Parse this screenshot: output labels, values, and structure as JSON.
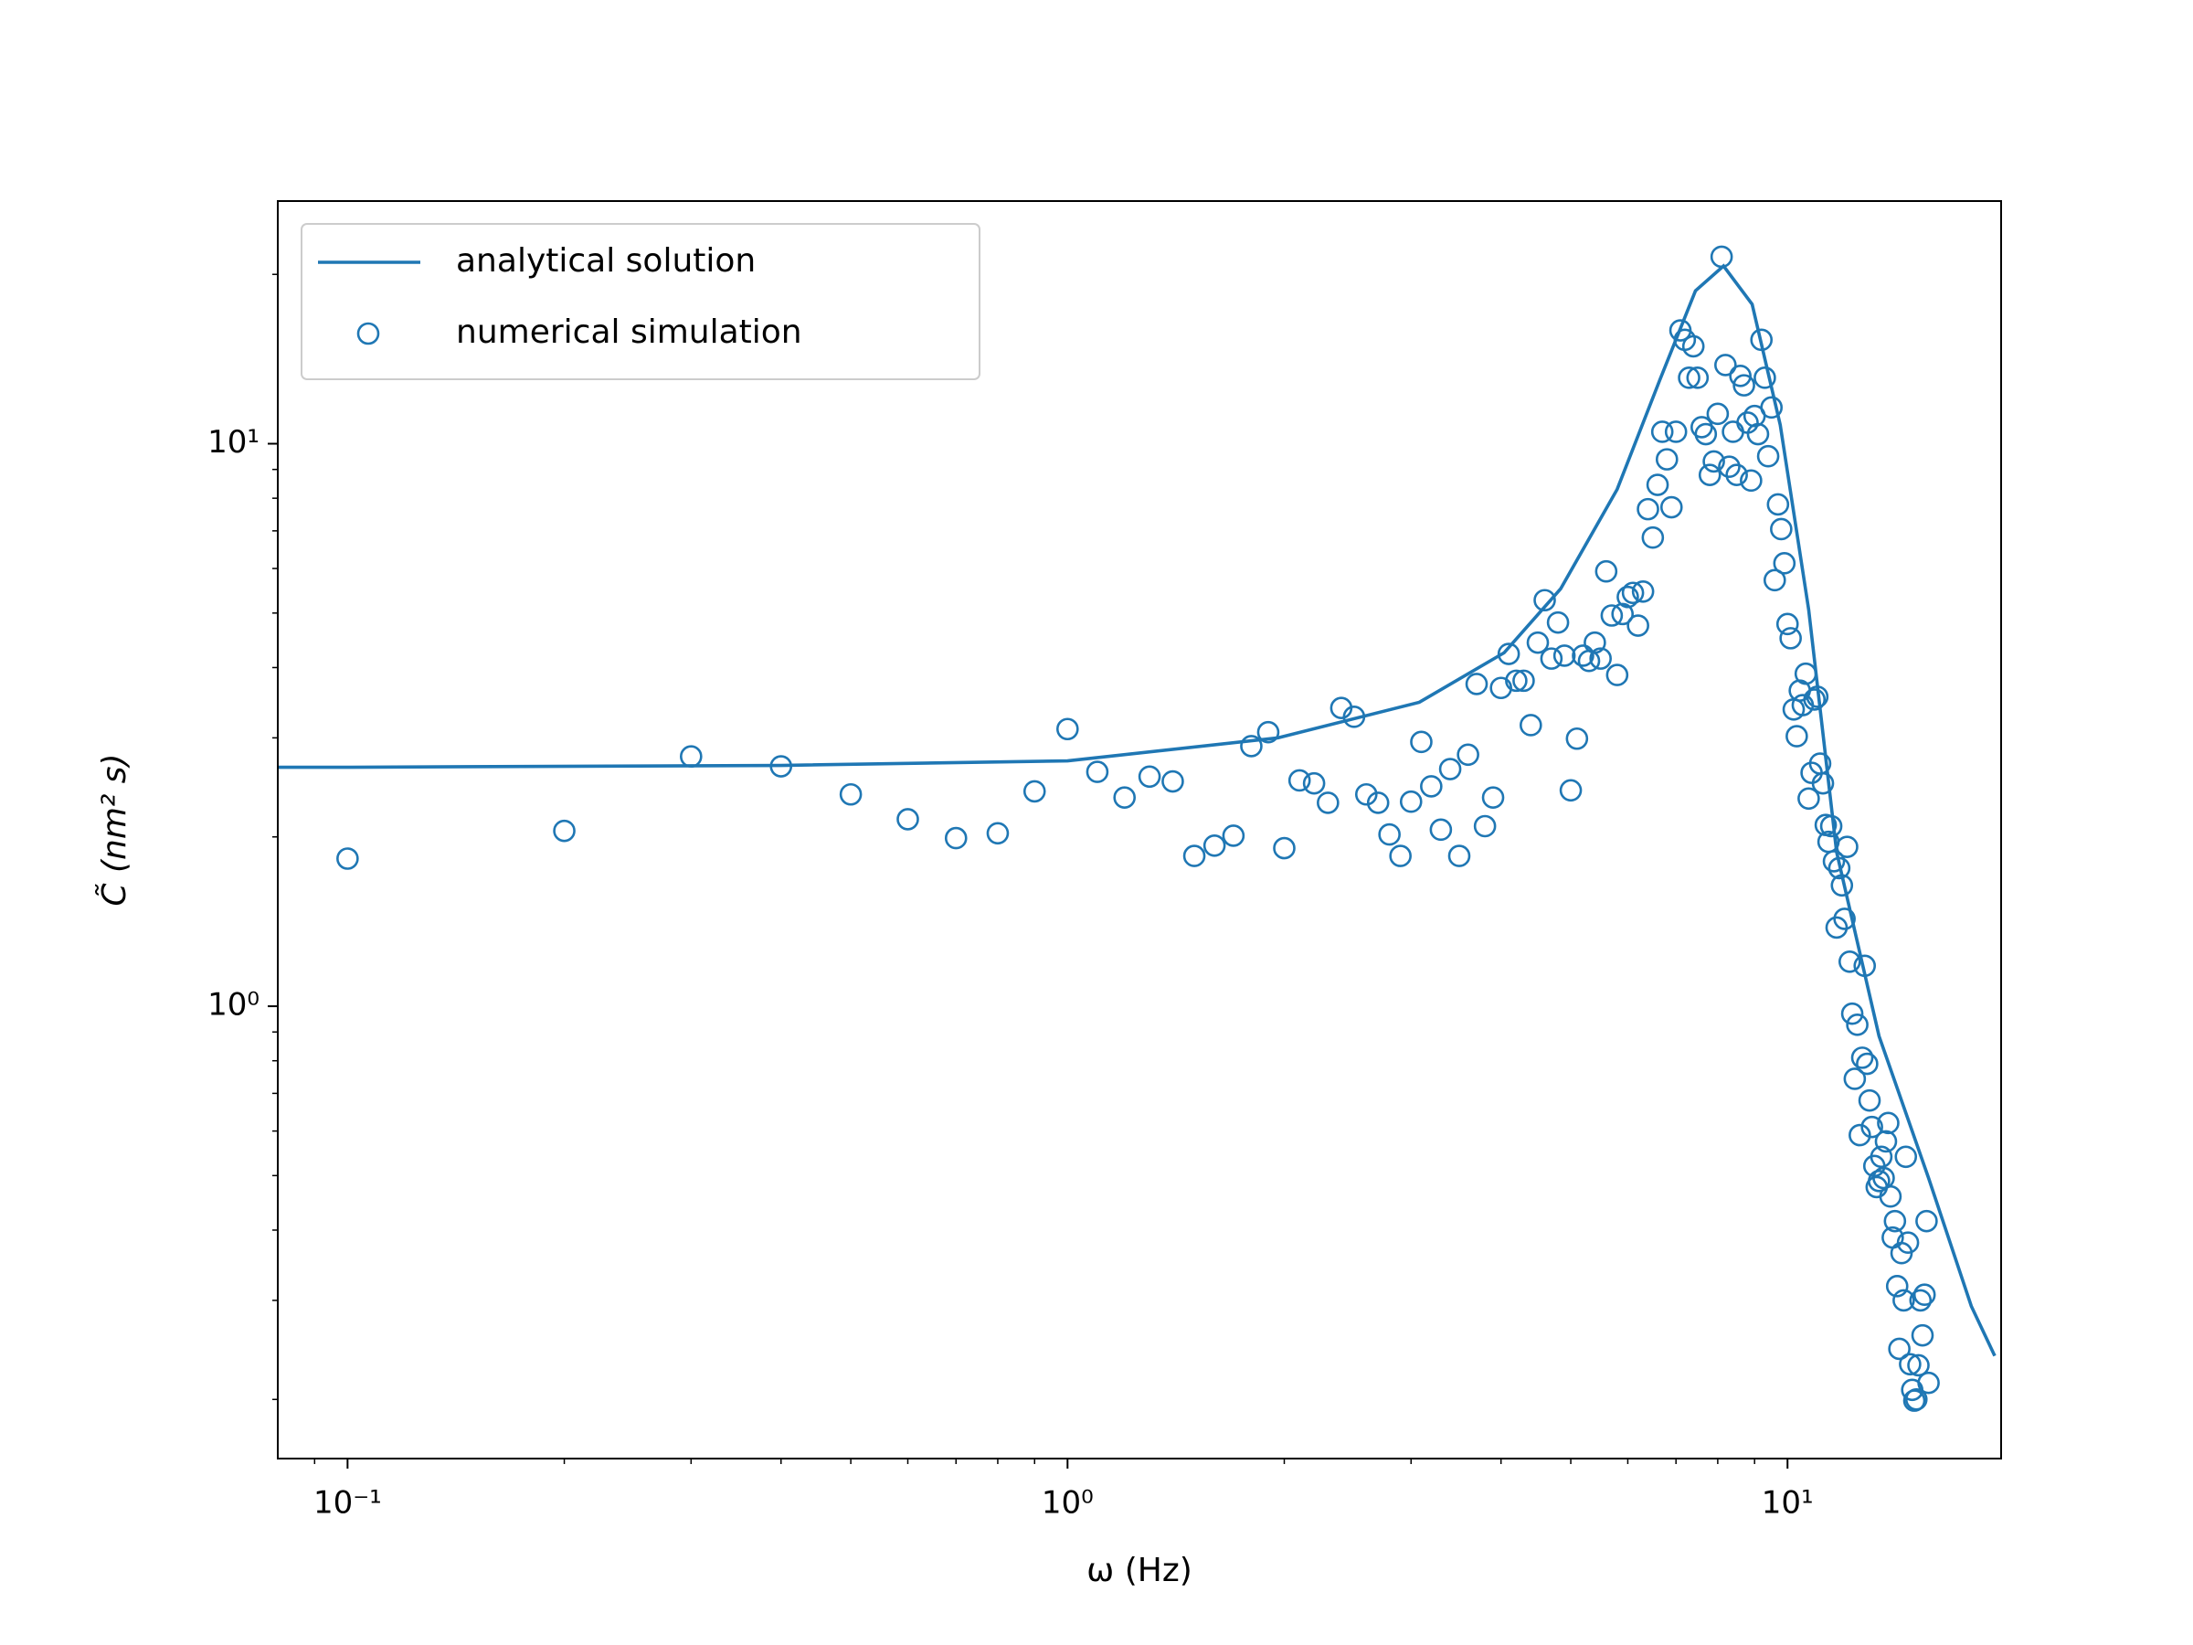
{
  "chart_data": {
    "type": "line-scatter",
    "xlabel": "ω (Hz)",
    "ylabel": "C̃ (nm² s)",
    "xscale": "log",
    "yscale": "log",
    "xlim": [
      0.08,
      19.8
    ],
    "ylim": [
      0.157,
      27.0
    ],
    "xticks": [
      {
        "value": 0.1,
        "label": "10⁻¹"
      },
      {
        "value": 1,
        "label": "10⁰"
      },
      {
        "value": 10,
        "label": "10¹"
      }
    ],
    "yticks": [
      {
        "value": 1,
        "label": "10⁰"
      },
      {
        "value": 10,
        "label": "10¹"
      }
    ],
    "xminorticks": [
      0.09,
      0.2,
      0.3,
      0.4,
      0.5,
      0.6,
      0.7,
      0.8,
      0.9,
      2,
      3,
      4,
      5,
      6,
      7,
      8,
      9
    ],
    "yminorticks": [
      0.2,
      0.3,
      0.4,
      0.5,
      0.6,
      0.7,
      0.8,
      0.9,
      2,
      3,
      4,
      5,
      6,
      7,
      8,
      9,
      20
    ],
    "legend": "upper left",
    "series": [
      {
        "name": "analytical solution",
        "type": "line",
        "color": "#1f77b4",
        "x": [
          0.08,
          0.1,
          0.4,
          1.0,
          1.96,
          3.08,
          4.04,
          4.84,
          5.8,
          6.65,
          7.45,
          8.15,
          8.93,
          9.77,
          10.7,
          11.7,
          13.4,
          15.7,
          18.0,
          19.4
        ],
        "values": [
          2.66,
          2.66,
          2.68,
          2.73,
          3.0,
          3.47,
          4.25,
          5.52,
          8.3,
          13.0,
          18.7,
          20.7,
          17.7,
          10.8,
          5.07,
          1.88,
          0.885,
          0.495,
          0.293,
          0.239
        ]
      },
      {
        "name": "numerical simulation",
        "type": "scatter",
        "color": "#1f77b4",
        "x": [
          0.1,
          0.2,
          0.3,
          0.4,
          0.5,
          0.6,
          0.7,
          0.8,
          0.9,
          1.0,
          1.1,
          1.2,
          1.3,
          1.4,
          1.5,
          1.6,
          1.7,
          1.8,
          1.9,
          2.0,
          2.1,
          2.2,
          2.3,
          2.4,
          2.5,
          2.6,
          2.7,
          2.8,
          2.9,
          3.0,
          3.1,
          3.2,
          3.3,
          3.4,
          3.5,
          3.6,
          3.7,
          3.8,
          3.9,
          4.0,
          4.1,
          4.2,
          4.3,
          4.4,
          4.5,
          4.6,
          4.7,
          4.8,
          4.9,
          5.0,
          5.1,
          5.2,
          5.3,
          5.4,
          5.5,
          5.6,
          5.7,
          5.8,
          5.9,
          6.0,
          6.1,
          6.2,
          6.3,
          6.4,
          6.5,
          6.6,
          6.7,
          6.8,
          6.9,
          7.0,
          7.1,
          7.2,
          7.3,
          7.4,
          7.5,
          7.6,
          7.7,
          7.8,
          7.9,
          8.0,
          8.1,
          8.2,
          8.3,
          8.4,
          8.5,
          8.6,
          8.7,
          8.8,
          8.9,
          9.0,
          9.1,
          9.2,
          9.3,
          9.4,
          9.5,
          9.6,
          9.7,
          9.8,
          9.9,
          10.0,
          10.1,
          10.2,
          10.3,
          10.4,
          10.5,
          10.6,
          10.7,
          10.8,
          10.9,
          11.0,
          11.1,
          11.2,
          11.3,
          11.4,
          11.5,
          11.6,
          11.7,
          11.8,
          11.9,
          12.0,
          12.1,
          12.2,
          12.3,
          12.4,
          12.5,
          12.6,
          12.7,
          12.8,
          12.9,
          13.0,
          13.1,
          13.2,
          13.3,
          13.4,
          13.5,
          13.6,
          13.7,
          13.8,
          13.9,
          14.0,
          14.1,
          14.2,
          14.3,
          14.4,
          14.5,
          14.6,
          14.7,
          14.8,
          14.9,
          15.0,
          15.1,
          15.2,
          15.3,
          15.4,
          15.5,
          15.6,
          15.7
        ],
        "values": [
          1.83,
          2.05,
          2.78,
          2.67,
          2.38,
          2.15,
          1.99,
          2.03,
          2.41,
          3.11,
          2.61,
          2.35,
          2.56,
          2.51,
          1.85,
          1.93,
          2.01,
          2.9,
          3.07,
          1.91,
          2.52,
          2.49,
          2.3,
          3.39,
          3.27,
          2.38,
          2.3,
          2.02,
          1.85,
          2.31,
          2.95,
          2.46,
          2.06,
          2.64,
          1.85,
          2.8,
          3.74,
          2.09,
          2.35,
          3.68,
          4.23,
          3.79,
          3.79,
          3.16,
          4.43,
          5.27,
          4.15,
          4.81,
          4.2,
          2.42,
          2.99,
          4.2,
          4.11,
          4.43,
          4.15,
          5.93,
          4.95,
          3.88,
          4.98,
          5.34,
          5.43,
          4.75,
          5.46,
          7.65,
          6.81,
          8.45,
          10.5,
          9.38,
          7.71,
          10.5,
          15.9,
          15.3,
          13.1,
          14.9,
          13.1,
          10.7,
          10.4,
          8.8,
          9.3,
          11.3,
          21.5,
          13.8,
          9.1,
          10.5,
          8.8,
          13.2,
          12.7,
          10.9,
          8.6,
          11.2,
          10.4,
          15.3,
          13.1,
          9.5,
          11.6,
          5.72,
          7.8,
          7.05,
          6.13,
          4.78,
          4.51,
          3.37,
          3.02,
          3.64,
          3.43,
          3.9,
          2.34,
          2.6,
          3.51,
          3.55,
          2.7,
          2.49,
          2.1,
          1.96,
          2.09,
          1.81,
          1.38,
          1.76,
          1.64,
          1.43,
          1.92,
          1.2,
          0.97,
          0.743,
          0.927,
          0.59,
          0.81,
          1.18,
          0.79,
          0.68,
          0.61,
          0.52,
          0.477,
          0.489,
          0.54,
          0.495,
          0.575,
          0.62,
          0.459,
          0.388,
          0.415,
          0.318,
          0.246,
          0.364,
          0.3,
          0.54,
          0.38,
          0.231,
          0.208,
          0.199,
          0.2,
          0.23,
          0.3,
          0.26,
          0.307,
          0.415,
          0.214
        ]
      }
    ]
  }
}
